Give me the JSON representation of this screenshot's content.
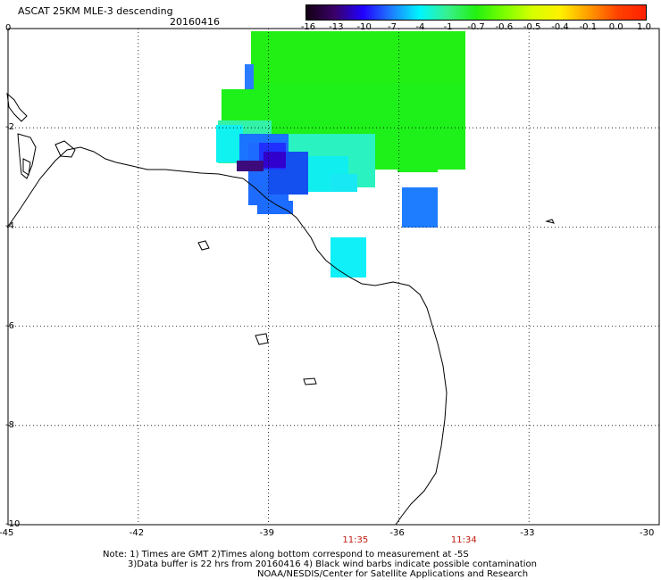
{
  "header": {
    "title": "ASCAT 25KM MLE-3 descending",
    "date": "20160416"
  },
  "colorbar": {
    "labels": [
      "-16",
      "-13",
      "-10",
      "-7",
      "-4",
      "-1",
      "-0.7",
      "-0.6",
      "-0.5",
      "-0.4",
      "-0.1",
      "0.0",
      "1.0"
    ],
    "colors": [
      "#140014",
      "#3a0068",
      "#2200ff",
      "#1e7cff",
      "#00f5ff",
      "#38f08c",
      "#22f010",
      "#7cff00",
      "#d6ff00",
      "#fff000",
      "#ff9a00",
      "#ff4200",
      "#ff2000"
    ]
  },
  "map": {
    "lon_ticks": [
      "-45",
      "-42",
      "-39",
      "-36",
      "-33",
      "-30"
    ],
    "lat_ticks": [
      "0",
      "-2",
      "-4",
      "-6",
      "-8",
      "-10"
    ],
    "lon_range": [
      -45,
      -30
    ],
    "lat_range": [
      -10,
      0
    ],
    "grid": "dotted",
    "land_color": "#ffffff",
    "coast_color": "#000000"
  },
  "times": [
    {
      "label": "11:35",
      "lon": -37.0
    },
    {
      "label": "11:34",
      "lon": -34.5
    }
  ],
  "notes": {
    "line1": "Note: 1) Times are GMT 2)Times along bottom correspond to measurement at -5S",
    "line2": "3)Data buffer is 22 hrs from 20160416 4) Black wind barbs indicate possible contamination",
    "line3": "NOAA/NESDIS/Center for Satellite Applications and Research"
  }
}
